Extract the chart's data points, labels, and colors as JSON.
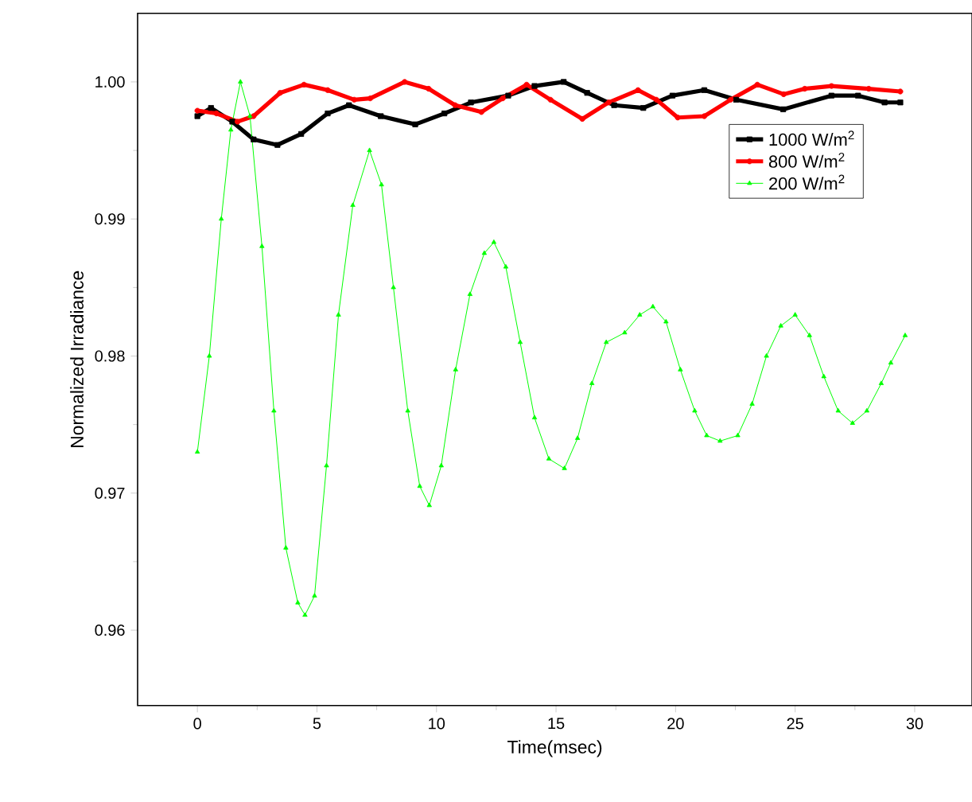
{
  "chart_data": {
    "type": "line",
    "xlabel": "Time(msec)",
    "ylabel": "Normalized Irradiance",
    "xlim": [
      -2.5,
      32.4
    ],
    "ylim": [
      0.9545,
      1.005
    ],
    "xticks": [
      0,
      5,
      10,
      15,
      20,
      25,
      30
    ],
    "yticks": [
      0.96,
      0.97,
      0.98,
      0.99,
      {
        "value": 1.0,
        "label": "1.00"
      }
    ],
    "legend": "top right",
    "grid": false,
    "series": [
      {
        "name": "1000 W/m$^{2}$",
        "color": "#000000",
        "marker": "square",
        "x": [
          0,
          0.57,
          1.46,
          2.35,
          3.35,
          4.34,
          5.45,
          6.34,
          7.67,
          9.11,
          10.33,
          11.44,
          13.0,
          14.1,
          15.32,
          16.3,
          17.43,
          18.65,
          19.87,
          21.2,
          22.53,
          24.5,
          26.52,
          27.63,
          28.74,
          29.4
        ],
        "values": [
          0.9975,
          0.9981,
          0.9971,
          0.9958,
          0.9954,
          0.9962,
          0.9977,
          0.9983,
          0.9975,
          0.9969,
          0.9977,
          0.9985,
          0.999,
          0.9997,
          1.0,
          0.9992,
          0.9983,
          0.9981,
          0.999,
          0.9994,
          0.9987,
          0.998,
          0.999,
          0.999,
          0.9985,
          0.9985
        ]
      },
      {
        "name": "800 W/m$^{2}$",
        "color": "#ff0000",
        "marker": "circle",
        "x": [
          0,
          0.8,
          1.68,
          2.35,
          3.46,
          4.46,
          5.45,
          6.56,
          7.23,
          8.67,
          9.67,
          10.78,
          11.88,
          12.77,
          13.77,
          14.77,
          16.1,
          17.2,
          18.43,
          19.2,
          20.09,
          21.2,
          22.3,
          23.42,
          24.52,
          25.4,
          26.52,
          28.08,
          29.4
        ],
        "values": [
          0.9979,
          0.9977,
          0.9971,
          0.9975,
          0.9992,
          0.9998,
          0.9994,
          0.9987,
          0.9988,
          1.0,
          0.9995,
          0.9983,
          0.9978,
          0.9988,
          0.9998,
          0.9987,
          0.9973,
          0.9985,
          0.9994,
          0.9987,
          0.9974,
          0.9975,
          0.9987,
          0.9998,
          0.9991,
          0.9995,
          0.9997,
          0.9995,
          0.9993
        ]
      },
      {
        "name": "200 W/m$^{2}$",
        "color": "#00ff00",
        "marker": "triangle",
        "x": [
          0,
          0.5,
          1.0,
          1.4,
          1.8,
          2.2,
          2.7,
          3.2,
          3.7,
          4.2,
          4.5,
          4.9,
          5.4,
          5.9,
          6.5,
          7.2,
          7.7,
          8.2,
          8.8,
          9.3,
          9.7,
          10.2,
          10.8,
          11.4,
          12.0,
          12.4,
          12.9,
          13.5,
          14.1,
          14.7,
          15.35,
          15.9,
          16.5,
          17.1,
          17.87,
          18.5,
          19.05,
          19.6,
          20.2,
          20.8,
          21.3,
          21.86,
          22.6,
          23.2,
          23.8,
          24.4,
          25.0,
          25.6,
          26.2,
          26.8,
          27.4,
          28.0,
          28.6,
          29.0,
          29.6
        ],
        "values": [
          0.973,
          0.98,
          0.99,
          0.9965,
          1.0,
          0.9975,
          0.988,
          0.976,
          0.966,
          0.962,
          0.9611,
          0.9625,
          0.972,
          0.983,
          0.991,
          0.995,
          0.9925,
          0.985,
          0.976,
          0.9705,
          0.9691,
          0.972,
          0.979,
          0.9845,
          0.9875,
          0.9883,
          0.9865,
          0.981,
          0.9755,
          0.9725,
          0.9718,
          0.974,
          0.978,
          0.981,
          0.9817,
          0.983,
          0.9836,
          0.9825,
          0.979,
          0.976,
          0.9742,
          0.9738,
          0.9742,
          0.9765,
          0.98,
          0.9822,
          0.983,
          0.9815,
          0.9785,
          0.976,
          0.9751,
          0.976,
          0.978,
          0.9795,
          0.9815
        ]
      }
    ]
  }
}
